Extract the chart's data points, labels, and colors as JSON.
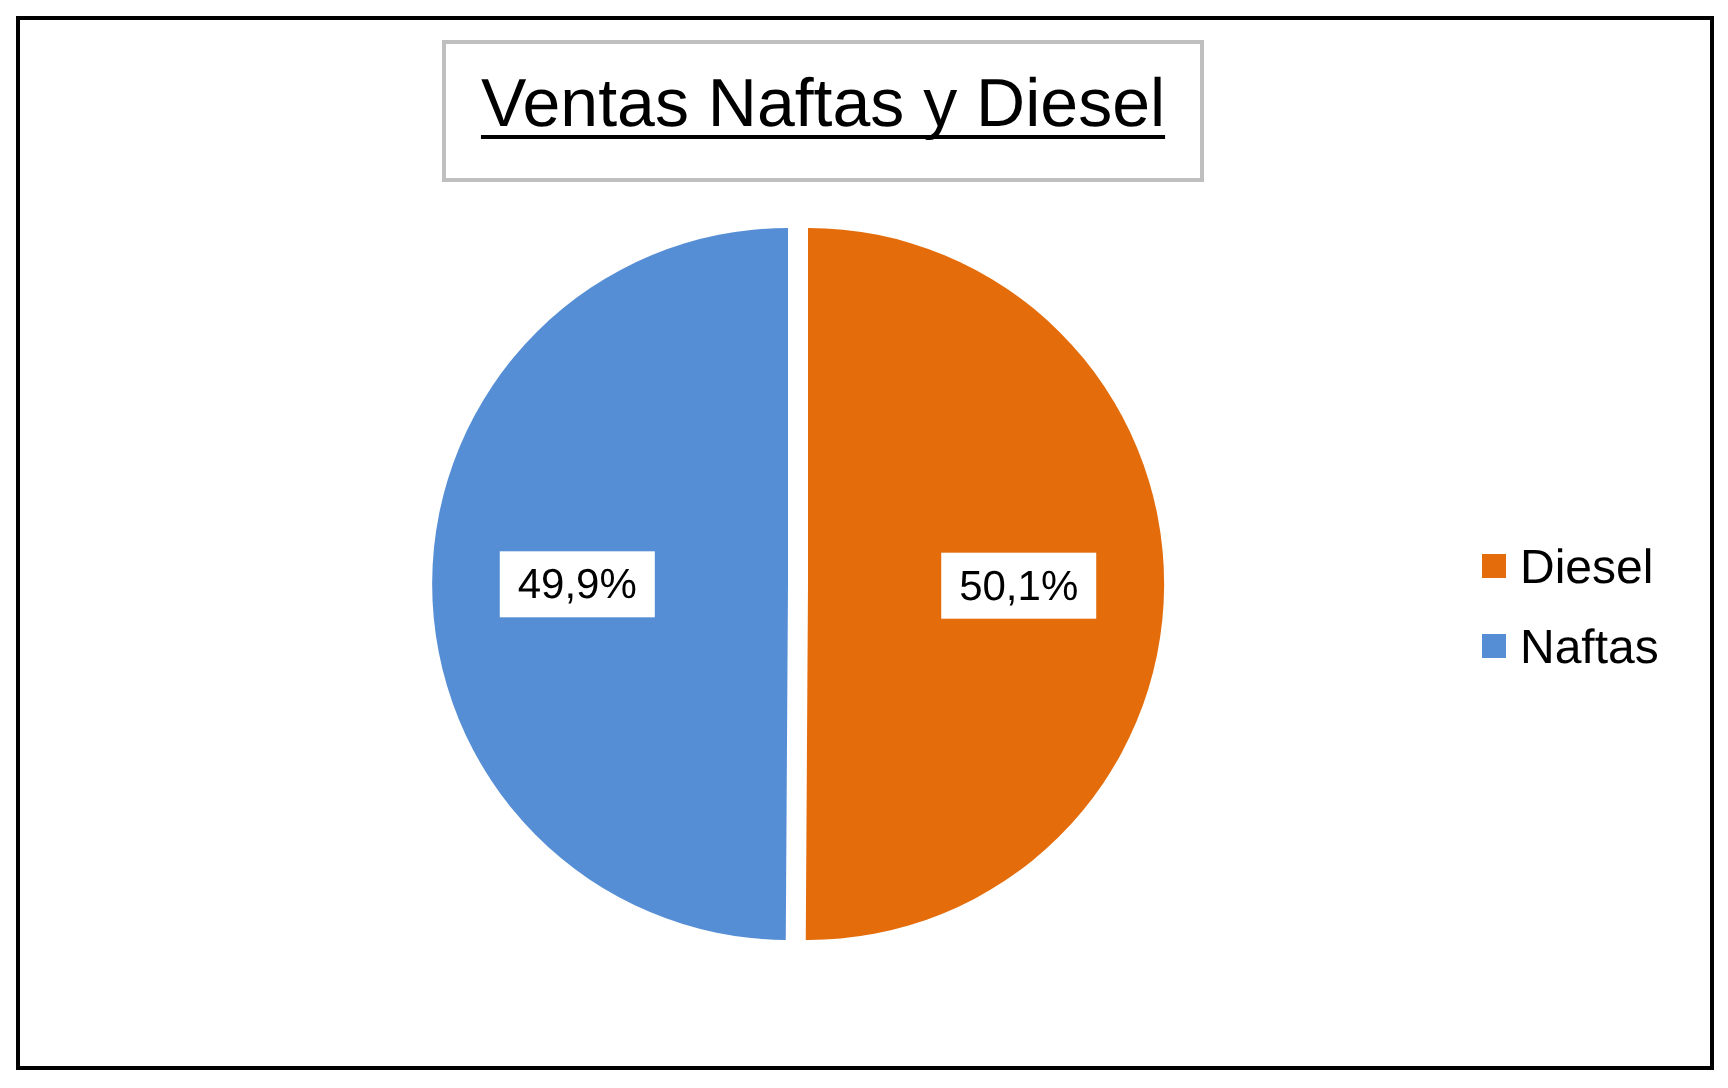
{
  "chart_data": {
    "type": "pie",
    "title": "Ventas Naftas y Diesel",
    "categories": [
      "Diesel",
      "Naftas"
    ],
    "values": [
      50.1,
      49.9
    ],
    "colors": [
      "#e46c0a",
      "#558ed5"
    ],
    "value_labels": [
      "50,1%",
      "49,9%"
    ],
    "legend": "right"
  }
}
